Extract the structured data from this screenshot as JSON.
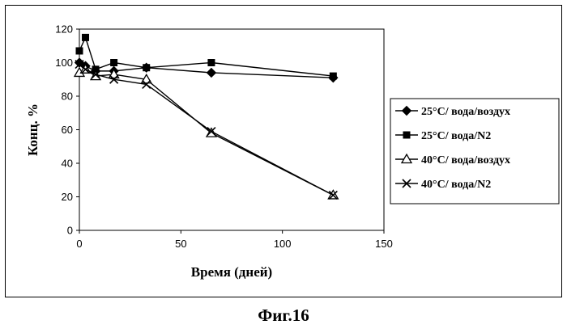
{
  "chart_data": {
    "type": "line",
    "xlabel": "Время (дней)",
    "ylabel": "Конц. %",
    "xlim": [
      0,
      150
    ],
    "ylim": [
      0,
      120
    ],
    "xticks": [
      0,
      50,
      100,
      150
    ],
    "yticks": [
      0,
      20,
      40,
      60,
      80,
      100,
      120
    ],
    "grid": false,
    "legend_position": "right",
    "series": [
      {
        "name": "25°C/ вода/воздух",
        "marker": "diamond-filled",
        "color": "#000000",
        "x": [
          0,
          3,
          8,
          17,
          33,
          65,
          125
        ],
        "y": [
          100,
          98,
          95,
          95,
          97,
          94,
          91
        ]
      },
      {
        "name": "25°C/ вода/N2",
        "marker": "square-filled",
        "color": "#000000",
        "x": [
          0,
          3,
          8,
          17,
          33,
          65,
          125
        ],
        "y": [
          107,
          115,
          96,
          100,
          97,
          100,
          92
        ]
      },
      {
        "name": "40°C/ вода/воздух",
        "marker": "triangle-open",
        "color": "#000000",
        "x": [
          0,
          3,
          8,
          17,
          33,
          65,
          125
        ],
        "y": [
          94,
          96,
          92,
          93,
          90,
          58,
          21
        ]
      },
      {
        "name": "40°C/ вода/N2",
        "marker": "x",
        "color": "#000000",
        "x": [
          0,
          3,
          8,
          17,
          33,
          65,
          125
        ],
        "y": [
          99,
          96,
          93,
          90,
          87,
          59,
          21
        ]
      }
    ]
  },
  "caption": "Фиг.16"
}
